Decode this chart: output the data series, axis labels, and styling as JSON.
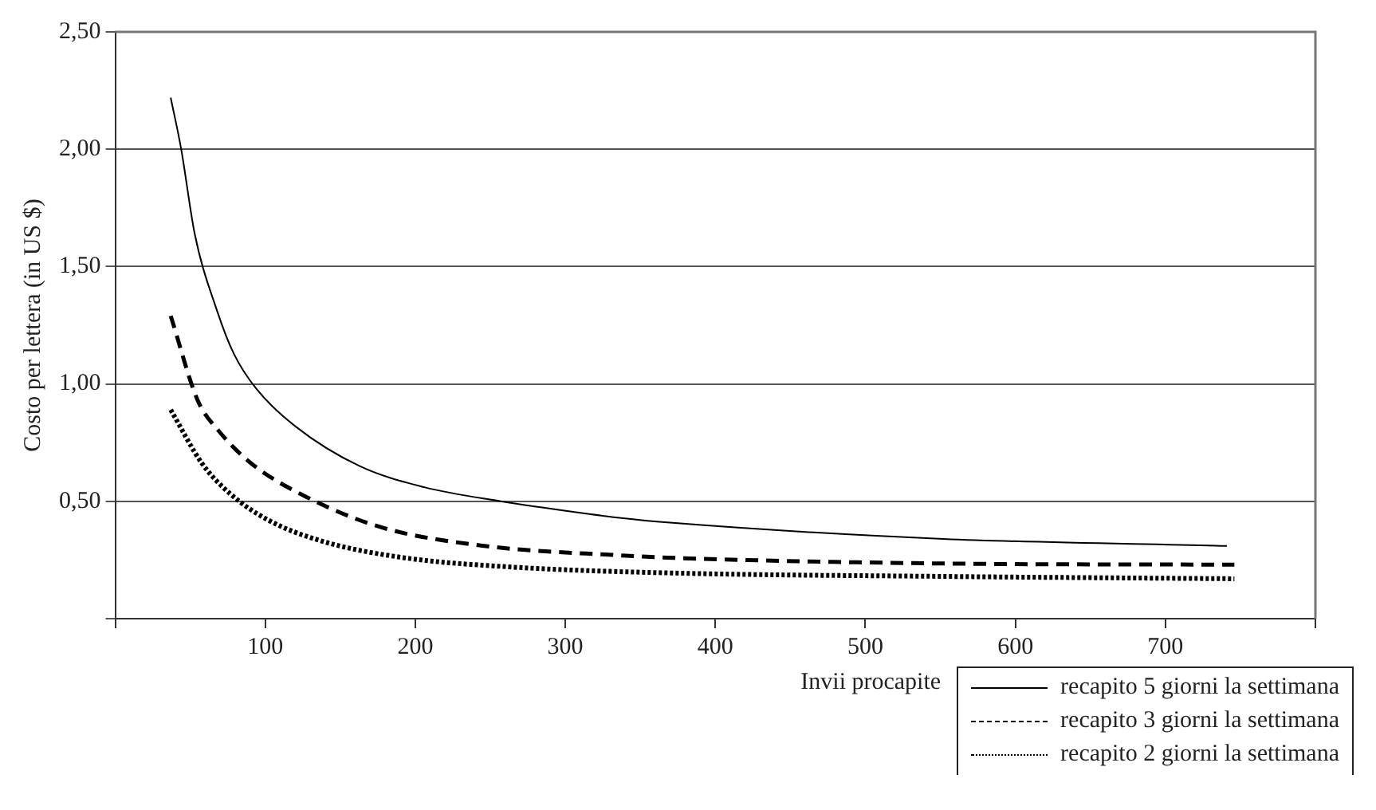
{
  "chart_data": {
    "type": "line",
    "xlabel": "Invii procapite",
    "ylabel": "Costo per lettera (in US $)",
    "xlim": [
      0,
      800
    ],
    "xticks": [
      {
        "value": 0,
        "label": null
      },
      100,
      200,
      300,
      400,
      500,
      600,
      700,
      {
        "value": 800,
        "label": null
      }
    ],
    "ylim": [
      0,
      2.5
    ],
    "yticks": [
      {
        "value": 0,
        "label": null
      },
      {
        "value": 0.5,
        "label": "0,50"
      },
      {
        "value": 1,
        "label": "1,00"
      },
      {
        "value": 1.5,
        "label": "1,50"
      },
      {
        "value": 2,
        "label": "2,00"
      },
      {
        "value": 2.5,
        "label": "2,50"
      }
    ],
    "grid": "y",
    "legend": "bottom right",
    "marker": "none",
    "series": [
      {
        "name": "recapito 5 giorni la settimana",
        "color": "#000000",
        "line_style": "solid",
        "x": [
          37,
          44,
          53,
          68,
          79,
          94,
          120,
          163,
          206,
          257,
          311,
          336,
          368,
          552,
          741
        ],
        "values": [
          2.22,
          2.0,
          1.64,
          1.31,
          1.13,
          0.98,
          0.82,
          0.65,
          0.56,
          0.5,
          0.45,
          0.43,
          0.41,
          0.34,
          0.31
        ]
      },
      {
        "name": "recapito 3 giorni la settimana",
        "color": "#000000",
        "line_style": "dashed",
        "x": [
          37,
          55,
          69,
          91,
          127,
          177,
          246,
          336,
          368,
          552,
          746
        ],
        "values": [
          1.29,
          0.93,
          0.8,
          0.66,
          0.52,
          0.39,
          0.31,
          0.27,
          0.26,
          0.235,
          0.23
        ]
      },
      {
        "name": "recapito 2 giorni la settimana",
        "color": "#000000",
        "line_style": "dotted",
        "x": [
          37,
          58,
          77,
          102,
          138,
          192,
          264,
          368,
          552,
          746
        ],
        "values": [
          0.89,
          0.66,
          0.53,
          0.42,
          0.33,
          0.26,
          0.22,
          0.195,
          0.18,
          0.17
        ]
      }
    ]
  }
}
